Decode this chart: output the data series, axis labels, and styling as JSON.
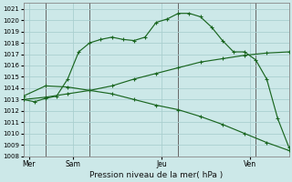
{
  "title": "Pression niveau de la mer( hPa )",
  "bg_color": "#cce8e8",
  "grid_color": "#aacfcf",
  "line_color": "#1a6620",
  "ylim": [
    1008,
    1021.5
  ],
  "yticks": [
    1008,
    1009,
    1010,
    1011,
    1012,
    1013,
    1014,
    1015,
    1016,
    1017,
    1018,
    1019,
    1020,
    1021
  ],
  "xlim": [
    0,
    24
  ],
  "day_labels": [
    "Mer",
    "Sam",
    "Jeu",
    "Ven"
  ],
  "day_positions": [
    0.5,
    4.5,
    12.5,
    20.5
  ],
  "vline_positions": [
    2,
    6,
    14,
    21
  ],
  "line1_x": [
    0,
    1,
    2,
    3,
    4,
    5,
    6,
    7,
    8,
    9,
    10,
    11,
    12,
    13,
    14,
    15,
    16,
    17,
    18,
    19,
    20,
    21,
    22,
    23,
    24
  ],
  "line1_y": [
    1013.0,
    1012.8,
    1013.1,
    1013.3,
    1014.8,
    1017.2,
    1018.0,
    1018.3,
    1018.5,
    1018.3,
    1018.2,
    1018.5,
    1019.8,
    1020.1,
    1020.6,
    1020.6,
    1020.3,
    1019.4,
    1018.2,
    1017.2,
    1017.2,
    1016.5,
    1014.8,
    1011.3,
    1008.8
  ],
  "line2_x": [
    0,
    2,
    4,
    6,
    8,
    10,
    12,
    14,
    16,
    18,
    20,
    22,
    24
  ],
  "line2_y": [
    1013.0,
    1013.2,
    1013.5,
    1013.8,
    1014.2,
    1014.8,
    1015.3,
    1015.8,
    1016.3,
    1016.6,
    1016.9,
    1017.1,
    1017.2
  ],
  "line3_x": [
    0,
    2,
    4,
    6,
    8,
    10,
    12,
    14,
    16,
    18,
    20,
    22,
    24
  ],
  "line3_y": [
    1013.3,
    1014.2,
    1014.1,
    1013.8,
    1013.5,
    1013.0,
    1012.5,
    1012.1,
    1011.5,
    1010.8,
    1010.0,
    1009.2,
    1008.5
  ]
}
